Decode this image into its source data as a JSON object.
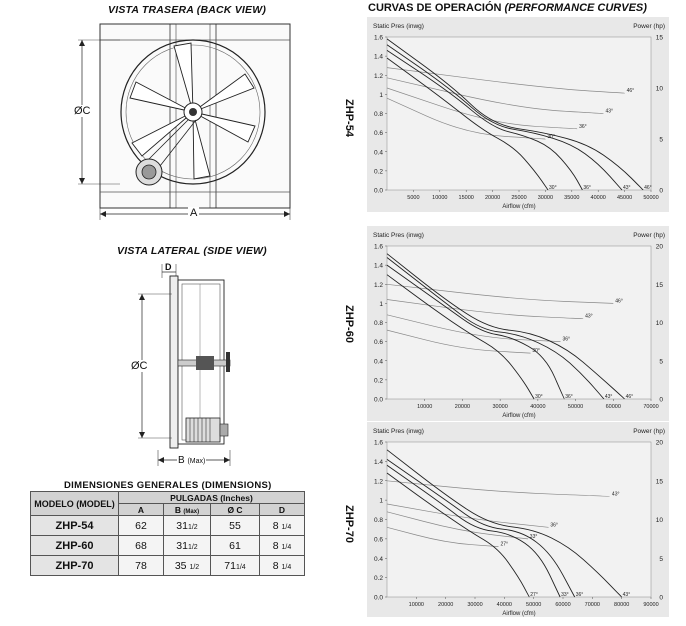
{
  "back_view": {
    "title": "VISTA TRASERA (BACK VIEW)",
    "label_c": "ØC",
    "label_a": "A"
  },
  "side_view": {
    "title": "VISTA LATERAL (SIDE VIEW)",
    "label_d": "D",
    "label_c": "ØC",
    "label_b": "B",
    "label_b_max": "(Max)"
  },
  "dimensions": {
    "title": "DIMENSIONES  GENERALES  (DIMENSIONS)",
    "col_model": "MODELO  (MODEL)",
    "col_group": "PULGADAS (Inches)",
    "col_a": "A",
    "col_b": "B",
    "col_b_max": "(Max)",
    "col_c": "Ø C",
    "col_d": "D",
    "rows": [
      {
        "model": "ZHP-54",
        "a": "62",
        "b": "31",
        "b_frac": "1/2",
        "c": "55",
        "c_frac": "",
        "d": "8",
        "d_frac": "1/4"
      },
      {
        "model": "ZHP-60",
        "a": "68",
        "b": "31",
        "b_frac": "1/2",
        "c": "61",
        "c_frac": "",
        "d": "8",
        "d_frac": "1/4"
      },
      {
        "model": "ZHP-70",
        "a": "78",
        "b": "35",
        "b_frac": "1/2",
        "c": "71",
        "c_frac": "1/4",
        "d": "8",
        "d_frac": "1/4"
      }
    ]
  },
  "curves": {
    "title_main": "CURVAS DE OPERACIÓN",
    "title_en": "(PERFORMANCE CURVES)"
  },
  "chart_data": [
    {
      "type": "line",
      "model": "ZHP-54",
      "ylabel": "Static Pres (inwg)",
      "y2label": "Power (hp)",
      "xlabel": "Airflow (cfm)",
      "xlim": [
        0,
        50000
      ],
      "ylim": [
        0,
        1.6
      ],
      "y2lim": [
        0,
        15
      ],
      "x_ticks": [
        5000,
        10000,
        15000,
        20000,
        25000,
        30000,
        35000,
        40000,
        45000,
        50000
      ],
      "y_ticks": [
        0.0,
        0.2,
        0.4,
        0.6,
        0.8,
        1,
        1.2,
        1.4,
        1.6
      ],
      "y2_ticks": [
        0,
        5,
        10,
        15
      ],
      "pressure_series": [
        {
          "name": "30°",
          "x": [
            0,
            10000,
            18000,
            24000,
            28000,
            30500
          ],
          "y": [
            1.38,
            0.98,
            0.63,
            0.45,
            0.2,
            0.0
          ]
        },
        {
          "name": "36°",
          "x": [
            0,
            12000,
            20000,
            26000,
            31000,
            35000,
            37000
          ],
          "y": [
            1.46,
            1.02,
            0.65,
            0.57,
            0.45,
            0.2,
            0.0
          ]
        },
        {
          "name": "43°",
          "x": [
            0,
            12000,
            20000,
            28000,
            35000,
            40000,
            44500
          ],
          "y": [
            1.52,
            1.06,
            0.67,
            0.6,
            0.48,
            0.28,
            0.0
          ]
        },
        {
          "name": "46°",
          "x": [
            0,
            12000,
            20000,
            30000,
            38000,
            44000,
            48500
          ],
          "y": [
            1.58,
            1.1,
            0.68,
            0.6,
            0.48,
            0.25,
            0.0
          ]
        }
      ],
      "power_series": [
        {
          "name": "30°",
          "x": [
            0,
            15000,
            30000
          ],
          "y": [
            9,
            5.5,
            5
          ]
        },
        {
          "name": "36°",
          "x": [
            0,
            20000,
            36000
          ],
          "y": [
            10,
            6.5,
            6
          ]
        },
        {
          "name": "43°",
          "x": [
            0,
            25000,
            41000
          ],
          "y": [
            11,
            8,
            7.5
          ]
        },
        {
          "name": "46°",
          "x": [
            0,
            30000,
            45000
          ],
          "y": [
            12,
            10,
            9.5
          ]
        }
      ]
    },
    {
      "type": "line",
      "model": "ZHP-60",
      "ylabel": "Static Pres (inwg)",
      "y2label": "Power (hp)",
      "xlabel": "Airflow (cfm)",
      "xlim": [
        0,
        70000
      ],
      "ylim": [
        0,
        1.6
      ],
      "y2lim": [
        0,
        20
      ],
      "x_ticks": [
        10000,
        20000,
        30000,
        40000,
        50000,
        60000,
        70000
      ],
      "y_ticks": [
        0.0,
        0.2,
        0.4,
        0.6,
        0.8,
        1,
        1.2,
        1.4,
        1.6
      ],
      "y2_ticks": [
        0,
        5,
        10,
        15,
        20
      ],
      "pressure_series": [
        {
          "name": "30°",
          "x": [
            0,
            12000,
            22000,
            30000,
            36000,
            39000
          ],
          "y": [
            1.3,
            0.95,
            0.68,
            0.5,
            0.2,
            0.0
          ]
        },
        {
          "name": "36°",
          "x": [
            0,
            15000,
            25000,
            33000,
            42000,
            47000
          ],
          "y": [
            1.4,
            0.98,
            0.7,
            0.65,
            0.45,
            0.0
          ]
        },
        {
          "name": "43°",
          "x": [
            0,
            15000,
            25000,
            35000,
            45000,
            52000,
            57500
          ],
          "y": [
            1.48,
            1.02,
            0.72,
            0.68,
            0.5,
            0.25,
            0.0
          ]
        },
        {
          "name": "46°",
          "x": [
            0,
            15000,
            27000,
            38000,
            48000,
            56000,
            63000
          ],
          "y": [
            1.52,
            1.05,
            0.74,
            0.7,
            0.52,
            0.25,
            0.0
          ]
        }
      ],
      "power_series": [
        {
          "name": "30°",
          "x": [
            0,
            20000,
            38000
          ],
          "y": [
            9,
            6.5,
            6
          ]
        },
        {
          "name": "36°",
          "x": [
            0,
            25000,
            46000
          ],
          "y": [
            11,
            8,
            7.5
          ]
        },
        {
          "name": "43°",
          "x": [
            0,
            30000,
            52000
          ],
          "y": [
            13,
            11,
            10.5
          ]
        },
        {
          "name": "46°",
          "x": [
            0,
            35000,
            60000
          ],
          "y": [
            15,
            13,
            12.5
          ]
        }
      ]
    },
    {
      "type": "line",
      "model": "ZHP-70",
      "ylabel": "Static Pres (inwg)",
      "y2label": "Power (hp)",
      "xlabel": "Airflow (cfm)",
      "xlim": [
        0,
        90000
      ],
      "ylim": [
        0,
        1.6
      ],
      "y2lim": [
        0,
        20
      ],
      "x_ticks": [
        10000,
        20000,
        30000,
        40000,
        50000,
        60000,
        70000,
        80000,
        90000
      ],
      "y_ticks": [
        0.0,
        0.2,
        0.4,
        0.6,
        0.8,
        1,
        1.2,
        1.4,
        1.6
      ],
      "y2_ticks": [
        0,
        5,
        10,
        15,
        20
      ],
      "pressure_series": [
        {
          "name": "27°",
          "x": [
            0,
            15000,
            28000,
            38000,
            45000,
            48500
          ],
          "y": [
            1.28,
            0.95,
            0.68,
            0.5,
            0.2,
            0.0
          ]
        },
        {
          "name": "33°",
          "x": [
            0,
            18000,
            30000,
            42000,
            52000,
            59000
          ],
          "y": [
            1.36,
            0.98,
            0.7,
            0.66,
            0.45,
            0.0
          ]
        },
        {
          "name": "36°",
          "x": [
            0,
            20000,
            33000,
            46000,
            56000,
            64000
          ],
          "y": [
            1.42,
            1.0,
            0.72,
            0.68,
            0.45,
            0.0
          ]
        },
        {
          "name": "43°",
          "x": [
            0,
            20000,
            35000,
            50000,
            62000,
            72000,
            80000
          ],
          "y": [
            1.52,
            1.05,
            0.75,
            0.7,
            0.52,
            0.25,
            0.0
          ]
        }
      ],
      "power_series": [
        {
          "name": "27°",
          "x": [
            0,
            20000,
            38000
          ],
          "y": [
            9,
            7,
            6.5
          ]
        },
        {
          "name": "33°",
          "x": [
            0,
            25000,
            48000
          ],
          "y": [
            11,
            8.5,
            7.5
          ]
        },
        {
          "name": "36°",
          "x": [
            0,
            30000,
            55000
          ],
          "y": [
            12,
            10,
            9
          ]
        },
        {
          "name": "43°",
          "x": [
            0,
            40000,
            76000
          ],
          "y": [
            15,
            13.5,
            13
          ]
        }
      ]
    }
  ]
}
